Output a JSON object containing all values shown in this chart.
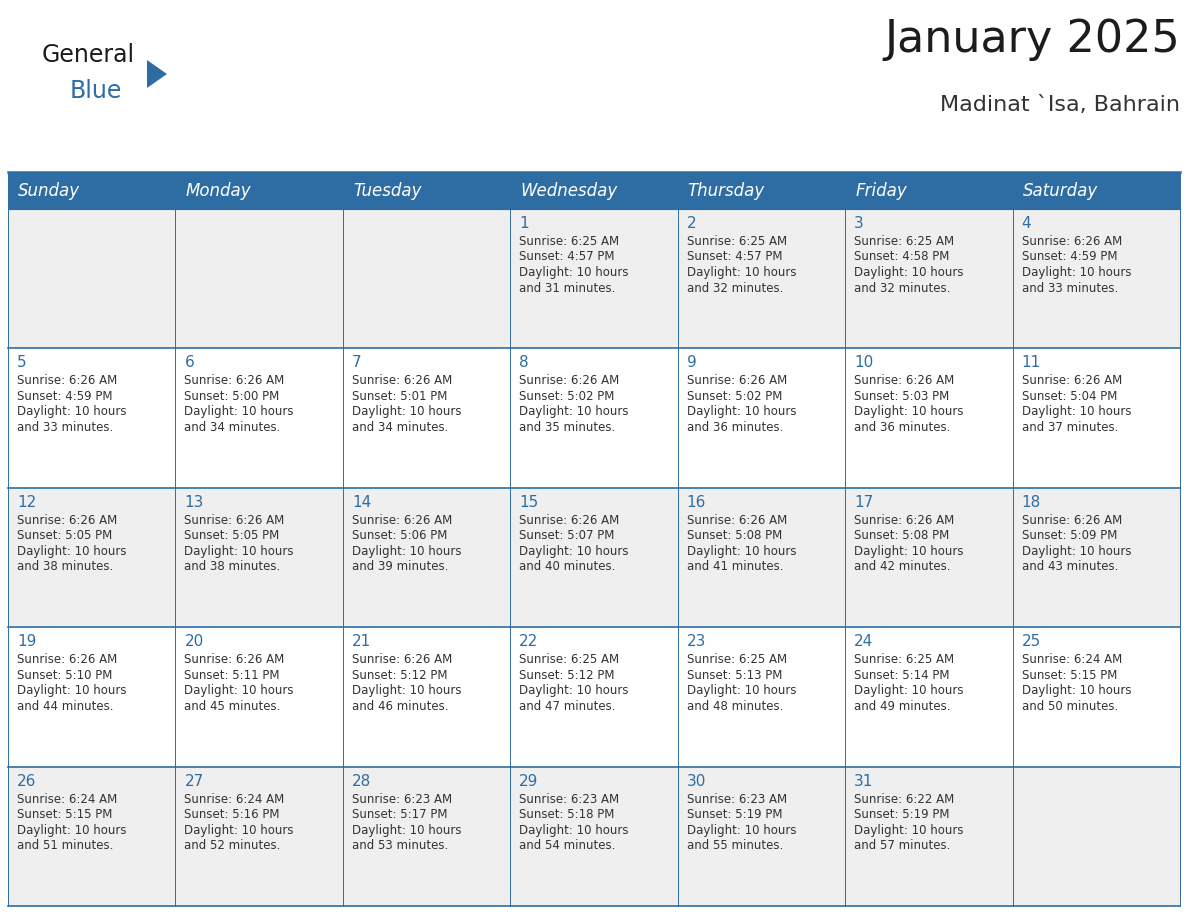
{
  "title": "January 2025",
  "subtitle": "Madinat `Isa, Bahrain",
  "header_bg": "#2E6DA4",
  "header_text_color": "#FFFFFF",
  "row_bg_odd": "#EFEFEF",
  "row_bg_even": "#FFFFFF",
  "cell_text_color": "#333333",
  "day_number_color": "#2E6DA4",
  "grid_line_color": "#2E6DA4",
  "days_of_week": [
    "Sunday",
    "Monday",
    "Tuesday",
    "Wednesday",
    "Thursday",
    "Friday",
    "Saturday"
  ],
  "weeks": [
    [
      {
        "day": 0,
        "sunrise": "",
        "sunset": "",
        "daylight": ""
      },
      {
        "day": 0,
        "sunrise": "",
        "sunset": "",
        "daylight": ""
      },
      {
        "day": 0,
        "sunrise": "",
        "sunset": "",
        "daylight": ""
      },
      {
        "day": 1,
        "sunrise": "6:25 AM",
        "sunset": "4:57 PM",
        "daylight": "10 hours and 31 minutes."
      },
      {
        "day": 2,
        "sunrise": "6:25 AM",
        "sunset": "4:57 PM",
        "daylight": "10 hours and 32 minutes."
      },
      {
        "day": 3,
        "sunrise": "6:25 AM",
        "sunset": "4:58 PM",
        "daylight": "10 hours and 32 minutes."
      },
      {
        "day": 4,
        "sunrise": "6:26 AM",
        "sunset": "4:59 PM",
        "daylight": "10 hours and 33 minutes."
      }
    ],
    [
      {
        "day": 5,
        "sunrise": "6:26 AM",
        "sunset": "4:59 PM",
        "daylight": "10 hours and 33 minutes."
      },
      {
        "day": 6,
        "sunrise": "6:26 AM",
        "sunset": "5:00 PM",
        "daylight": "10 hours and 34 minutes."
      },
      {
        "day": 7,
        "sunrise": "6:26 AM",
        "sunset": "5:01 PM",
        "daylight": "10 hours and 34 minutes."
      },
      {
        "day": 8,
        "sunrise": "6:26 AM",
        "sunset": "5:02 PM",
        "daylight": "10 hours and 35 minutes."
      },
      {
        "day": 9,
        "sunrise": "6:26 AM",
        "sunset": "5:02 PM",
        "daylight": "10 hours and 36 minutes."
      },
      {
        "day": 10,
        "sunrise": "6:26 AM",
        "sunset": "5:03 PM",
        "daylight": "10 hours and 36 minutes."
      },
      {
        "day": 11,
        "sunrise": "6:26 AM",
        "sunset": "5:04 PM",
        "daylight": "10 hours and 37 minutes."
      }
    ],
    [
      {
        "day": 12,
        "sunrise": "6:26 AM",
        "sunset": "5:05 PM",
        "daylight": "10 hours and 38 minutes."
      },
      {
        "day": 13,
        "sunrise": "6:26 AM",
        "sunset": "5:05 PM",
        "daylight": "10 hours and 38 minutes."
      },
      {
        "day": 14,
        "sunrise": "6:26 AM",
        "sunset": "5:06 PM",
        "daylight": "10 hours and 39 minutes."
      },
      {
        "day": 15,
        "sunrise": "6:26 AM",
        "sunset": "5:07 PM",
        "daylight": "10 hours and 40 minutes."
      },
      {
        "day": 16,
        "sunrise": "6:26 AM",
        "sunset": "5:08 PM",
        "daylight": "10 hours and 41 minutes."
      },
      {
        "day": 17,
        "sunrise": "6:26 AM",
        "sunset": "5:08 PM",
        "daylight": "10 hours and 42 minutes."
      },
      {
        "day": 18,
        "sunrise": "6:26 AM",
        "sunset": "5:09 PM",
        "daylight": "10 hours and 43 minutes."
      }
    ],
    [
      {
        "day": 19,
        "sunrise": "6:26 AM",
        "sunset": "5:10 PM",
        "daylight": "10 hours and 44 minutes."
      },
      {
        "day": 20,
        "sunrise": "6:26 AM",
        "sunset": "5:11 PM",
        "daylight": "10 hours and 45 minutes."
      },
      {
        "day": 21,
        "sunrise": "6:26 AM",
        "sunset": "5:12 PM",
        "daylight": "10 hours and 46 minutes."
      },
      {
        "day": 22,
        "sunrise": "6:25 AM",
        "sunset": "5:12 PM",
        "daylight": "10 hours and 47 minutes."
      },
      {
        "day": 23,
        "sunrise": "6:25 AM",
        "sunset": "5:13 PM",
        "daylight": "10 hours and 48 minutes."
      },
      {
        "day": 24,
        "sunrise": "6:25 AM",
        "sunset": "5:14 PM",
        "daylight": "10 hours and 49 minutes."
      },
      {
        "day": 25,
        "sunrise": "6:24 AM",
        "sunset": "5:15 PM",
        "daylight": "10 hours and 50 minutes."
      }
    ],
    [
      {
        "day": 26,
        "sunrise": "6:24 AM",
        "sunset": "5:15 PM",
        "daylight": "10 hours and 51 minutes."
      },
      {
        "day": 27,
        "sunrise": "6:24 AM",
        "sunset": "5:16 PM",
        "daylight": "10 hours and 52 minutes."
      },
      {
        "day": 28,
        "sunrise": "6:23 AM",
        "sunset": "5:17 PM",
        "daylight": "10 hours and 53 minutes."
      },
      {
        "day": 29,
        "sunrise": "6:23 AM",
        "sunset": "5:18 PM",
        "daylight": "10 hours and 54 minutes."
      },
      {
        "day": 30,
        "sunrise": "6:23 AM",
        "sunset": "5:19 PM",
        "daylight": "10 hours and 55 minutes."
      },
      {
        "day": 31,
        "sunrise": "6:22 AM",
        "sunset": "5:19 PM",
        "daylight": "10 hours and 57 minutes."
      },
      {
        "day": 0,
        "sunrise": "",
        "sunset": "",
        "daylight": ""
      }
    ]
  ],
  "logo_text_general": "General",
  "logo_text_blue": "Blue",
  "title_fontsize": 32,
  "subtitle_fontsize": 16,
  "header_fontsize": 12,
  "day_num_fontsize": 11,
  "cell_fontsize": 8.5
}
